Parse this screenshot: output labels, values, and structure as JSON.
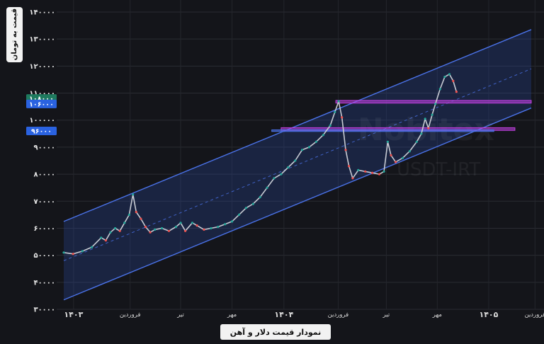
{
  "chart_data": {
    "type": "line",
    "title": "نمودار قیمت دلار و آهن",
    "ylabel": "قیمت به تومان",
    "xlabel": "",
    "watermark": "Nobitex",
    "symbol": "USDT-IRT",
    "ylim": [
      30000,
      140000
    ],
    "xlim": [
      0,
      100
    ],
    "y_ticks": [
      {
        "value": 30000,
        "label": "۳۰۰۰۰"
      },
      {
        "value": 40000,
        "label": "۴۰۰۰۰"
      },
      {
        "value": 50000,
        "label": "۵۰۰۰۰"
      },
      {
        "value": 60000,
        "label": "۶۰۰۰۰"
      },
      {
        "value": 70000,
        "label": "۷۰۰۰۰"
      },
      {
        "value": 80000,
        "label": "۸۰۰۰۰"
      },
      {
        "value": 90000,
        "label": "۹۰۰۰۰"
      },
      {
        "value": 100000,
        "label": "۱۰۰۰۰۰"
      },
      {
        "value": 110000,
        "label": "۱۱۰۰۰۰"
      },
      {
        "value": 120000,
        "label": "۱۲۰۰۰۰"
      },
      {
        "value": 130000,
        "label": "۱۳۰۰۰۰"
      },
      {
        "value": 140000,
        "label": "۱۴۰۰۰۰"
      }
    ],
    "x_ticks": [
      {
        "x": 2.1,
        "label": "۱۴۰۳"
      },
      {
        "x": 14.2,
        "label": "فروردین"
      },
      {
        "x": 25.0,
        "label": "تیر"
      },
      {
        "x": 36.0,
        "label": "مهر"
      },
      {
        "x": 47.1,
        "label": "۱۴۰۴"
      },
      {
        "x": 58.7,
        "label": "فروردین"
      },
      {
        "x": 69.0,
        "label": "تیر"
      },
      {
        "x": 79.9,
        "label": "مهر"
      },
      {
        "x": 90.9,
        "label": "۱۴۰۵"
      },
      {
        "x": 100.8,
        "label": "فروردین"
      }
    ],
    "price_badges": [
      {
        "value": 108000,
        "label": "۱۰۸۰۰۰",
        "color": "#1e7a5e"
      },
      {
        "value": 106000,
        "label": "۱۰۶۰۰۰",
        "color": "#2a62e0"
      },
      {
        "value": 96000,
        "label": "۹۶۰۰۰",
        "color": "#2a62e0"
      }
    ],
    "channel": {
      "upper": [
        [
          0,
          62500
        ],
        [
          100,
          133500
        ]
      ],
      "lower": [
        [
          0,
          33500
        ],
        [
          100,
          104500
        ]
      ],
      "mid": [
        [
          0,
          48000
        ],
        [
          100,
          119000
        ]
      ],
      "color": "#4a72e8"
    },
    "zones": [
      {
        "x": [
          58.2,
          100
        ],
        "y": [
          106300,
          107300
        ],
        "color": "#c040e0"
      },
      {
        "x": [
          46.5,
          96.5
        ],
        "y": [
          96200,
          97200
        ],
        "color": "#c040e0"
      },
      {
        "x": [
          44.5,
          92.0
        ],
        "y": [
          95800,
          96400
        ],
        "color": "#4a72e8"
      }
    ],
    "series": [
      {
        "values": [
          [
            0,
            51000
          ],
          [
            2,
            50500
          ],
          [
            4,
            51500
          ],
          [
            6,
            53000
          ],
          [
            8,
            56500
          ],
          [
            9,
            55500
          ],
          [
            10,
            58500
          ],
          [
            11,
            60000
          ],
          [
            12,
            59000
          ],
          [
            13,
            62000
          ],
          [
            14,
            65000
          ],
          [
            14.8,
            72500
          ],
          [
            15.5,
            66000
          ],
          [
            16.5,
            63500
          ],
          [
            17.5,
            60500
          ],
          [
            18.5,
            58500
          ],
          [
            19.5,
            59500
          ],
          [
            21,
            60000
          ],
          [
            22.5,
            59000
          ],
          [
            24,
            60500
          ],
          [
            25,
            62000
          ],
          [
            26,
            59000
          ],
          [
            27.5,
            62000
          ],
          [
            28.5,
            61000
          ],
          [
            30,
            59500
          ],
          [
            31.5,
            60000
          ],
          [
            33,
            60500
          ],
          [
            34.5,
            61500
          ],
          [
            36,
            62500
          ],
          [
            37.5,
            65000
          ],
          [
            39,
            67500
          ],
          [
            40.5,
            69000
          ],
          [
            42,
            71500
          ],
          [
            43.5,
            75000
          ],
          [
            45,
            78500
          ],
          [
            46.5,
            80000
          ],
          [
            48,
            82500
          ],
          [
            49.5,
            85000
          ],
          [
            51,
            89000
          ],
          [
            52.5,
            90000
          ],
          [
            54,
            92000
          ],
          [
            55.5,
            94500
          ],
          [
            57,
            98000
          ],
          [
            58,
            103000
          ],
          [
            58.8,
            107000
          ],
          [
            59.5,
            101000
          ],
          [
            60.3,
            89000
          ],
          [
            61,
            83000
          ],
          [
            61.8,
            78500
          ],
          [
            63,
            81500
          ],
          [
            64.5,
            81000
          ],
          [
            66,
            80500
          ],
          [
            67.5,
            80000
          ],
          [
            68.5,
            81000
          ],
          [
            69.3,
            92000
          ],
          [
            70,
            87000
          ],
          [
            71,
            84500
          ],
          [
            72.5,
            86000
          ],
          [
            74,
            88500
          ],
          [
            75.5,
            92000
          ],
          [
            76.5,
            95000
          ],
          [
            77.3,
            100500
          ],
          [
            78,
            97000
          ],
          [
            78.8,
            102000
          ],
          [
            79.5,
            106000
          ],
          [
            80.5,
            111500
          ],
          [
            81.5,
            116000
          ],
          [
            82.5,
            117000
          ],
          [
            83.3,
            114500
          ],
          [
            84,
            110500
          ]
        ]
      }
    ]
  }
}
